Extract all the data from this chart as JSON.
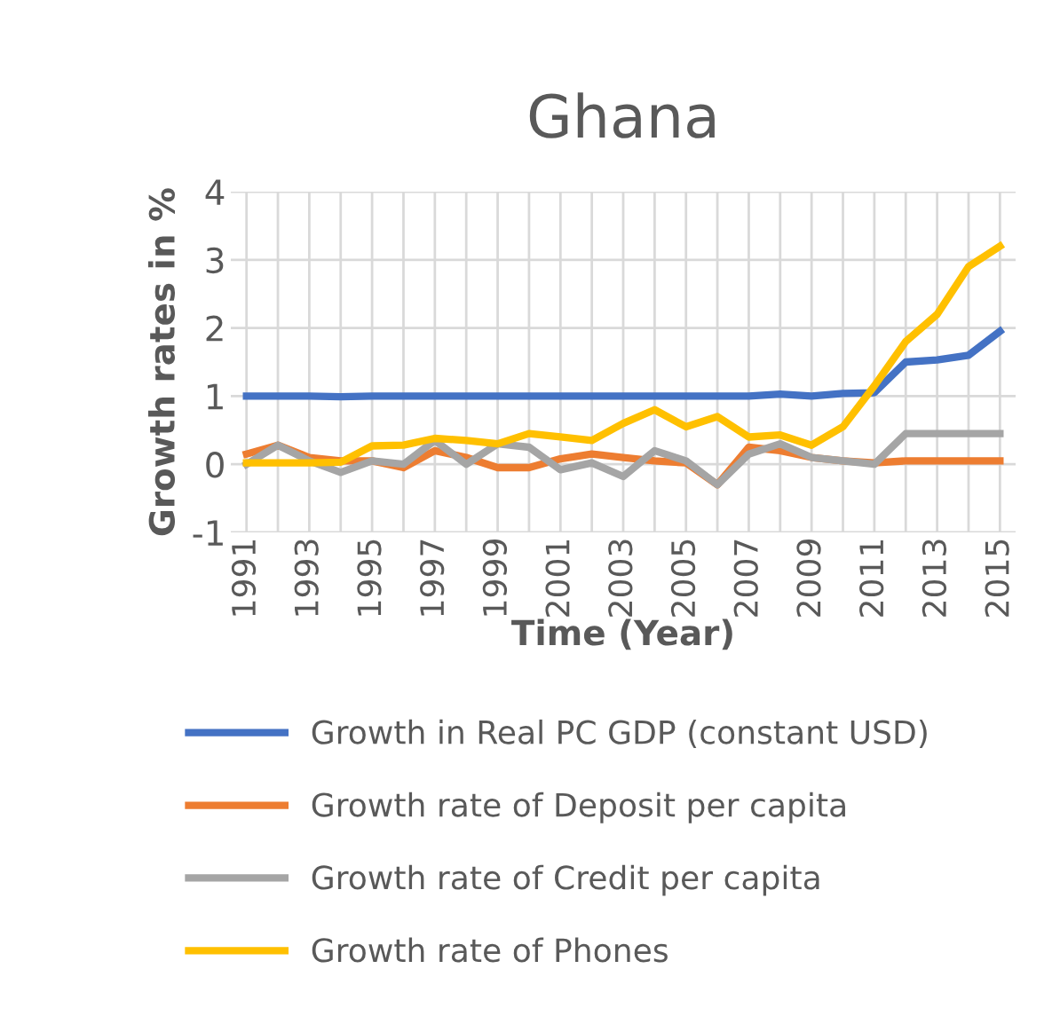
{
  "chart_data": {
    "type": "line",
    "title": "Ghana",
    "xlabel": "Time (Year)",
    "ylabel": "Growth rates in %",
    "categories": [
      "1991",
      null,
      "1993",
      null,
      "1995",
      null,
      "1997",
      null,
      "1999",
      null,
      "2001",
      null,
      "2003",
      null,
      "2005",
      null,
      "2007",
      null,
      "2009",
      null,
      "2011",
      null,
      "2013",
      null,
      "2015"
    ],
    "ylim": [
      -1,
      4
    ],
    "yticks": [
      -1,
      0,
      1,
      2,
      3,
      4
    ],
    "grid": true,
    "legend": "bottom",
    "marker": "none",
    "line_style": "solid",
    "series": [
      {
        "name": "Growth in Real PC GDP (constant USD)",
        "color": "#4472c4",
        "values": [
          1.0,
          1.0,
          1.0,
          0.99,
          1.0,
          1.0,
          1.0,
          1.0,
          1.0,
          1.0,
          1.0,
          1.0,
          1.0,
          1.0,
          1.0,
          1.0,
          1.0,
          1.03,
          1.0,
          1.04,
          1.05,
          1.5,
          1.53,
          1.6,
          1.95
        ]
      },
      {
        "name": "Growth rate of Deposit per capita",
        "color": "#ed7d31",
        "values": [
          0.15,
          0.28,
          0.1,
          0.05,
          0.05,
          -0.05,
          0.2,
          0.1,
          -0.05,
          -0.05,
          0.08,
          0.15,
          0.1,
          0.05,
          0.02,
          -0.3,
          0.25,
          0.2,
          0.1,
          0.05,
          0.02,
          0.05,
          0.05,
          0.05,
          0.05
        ]
      },
      {
        "name": "Growth rate of Credit per capita",
        "color": "#a5a5a5",
        "values": [
          0.0,
          0.28,
          0.05,
          -0.12,
          0.05,
          0.0,
          0.35,
          0.0,
          0.3,
          0.25,
          -0.08,
          0.02,
          -0.18,
          0.2,
          0.05,
          -0.3,
          0.15,
          0.3,
          0.1,
          0.05,
          0.0,
          0.45,
          0.45,
          0.45,
          0.45
        ]
      },
      {
        "name": "Growth rate of Phones",
        "color": "#ffc000",
        "values": [
          0.02,
          0.02,
          0.02,
          0.03,
          0.27,
          0.28,
          0.38,
          0.35,
          0.3,
          0.45,
          0.4,
          0.35,
          0.6,
          0.8,
          0.55,
          0.7,
          0.4,
          0.43,
          0.28,
          0.55,
          1.15,
          1.8,
          2.2,
          2.9,
          3.2
        ]
      }
    ]
  }
}
